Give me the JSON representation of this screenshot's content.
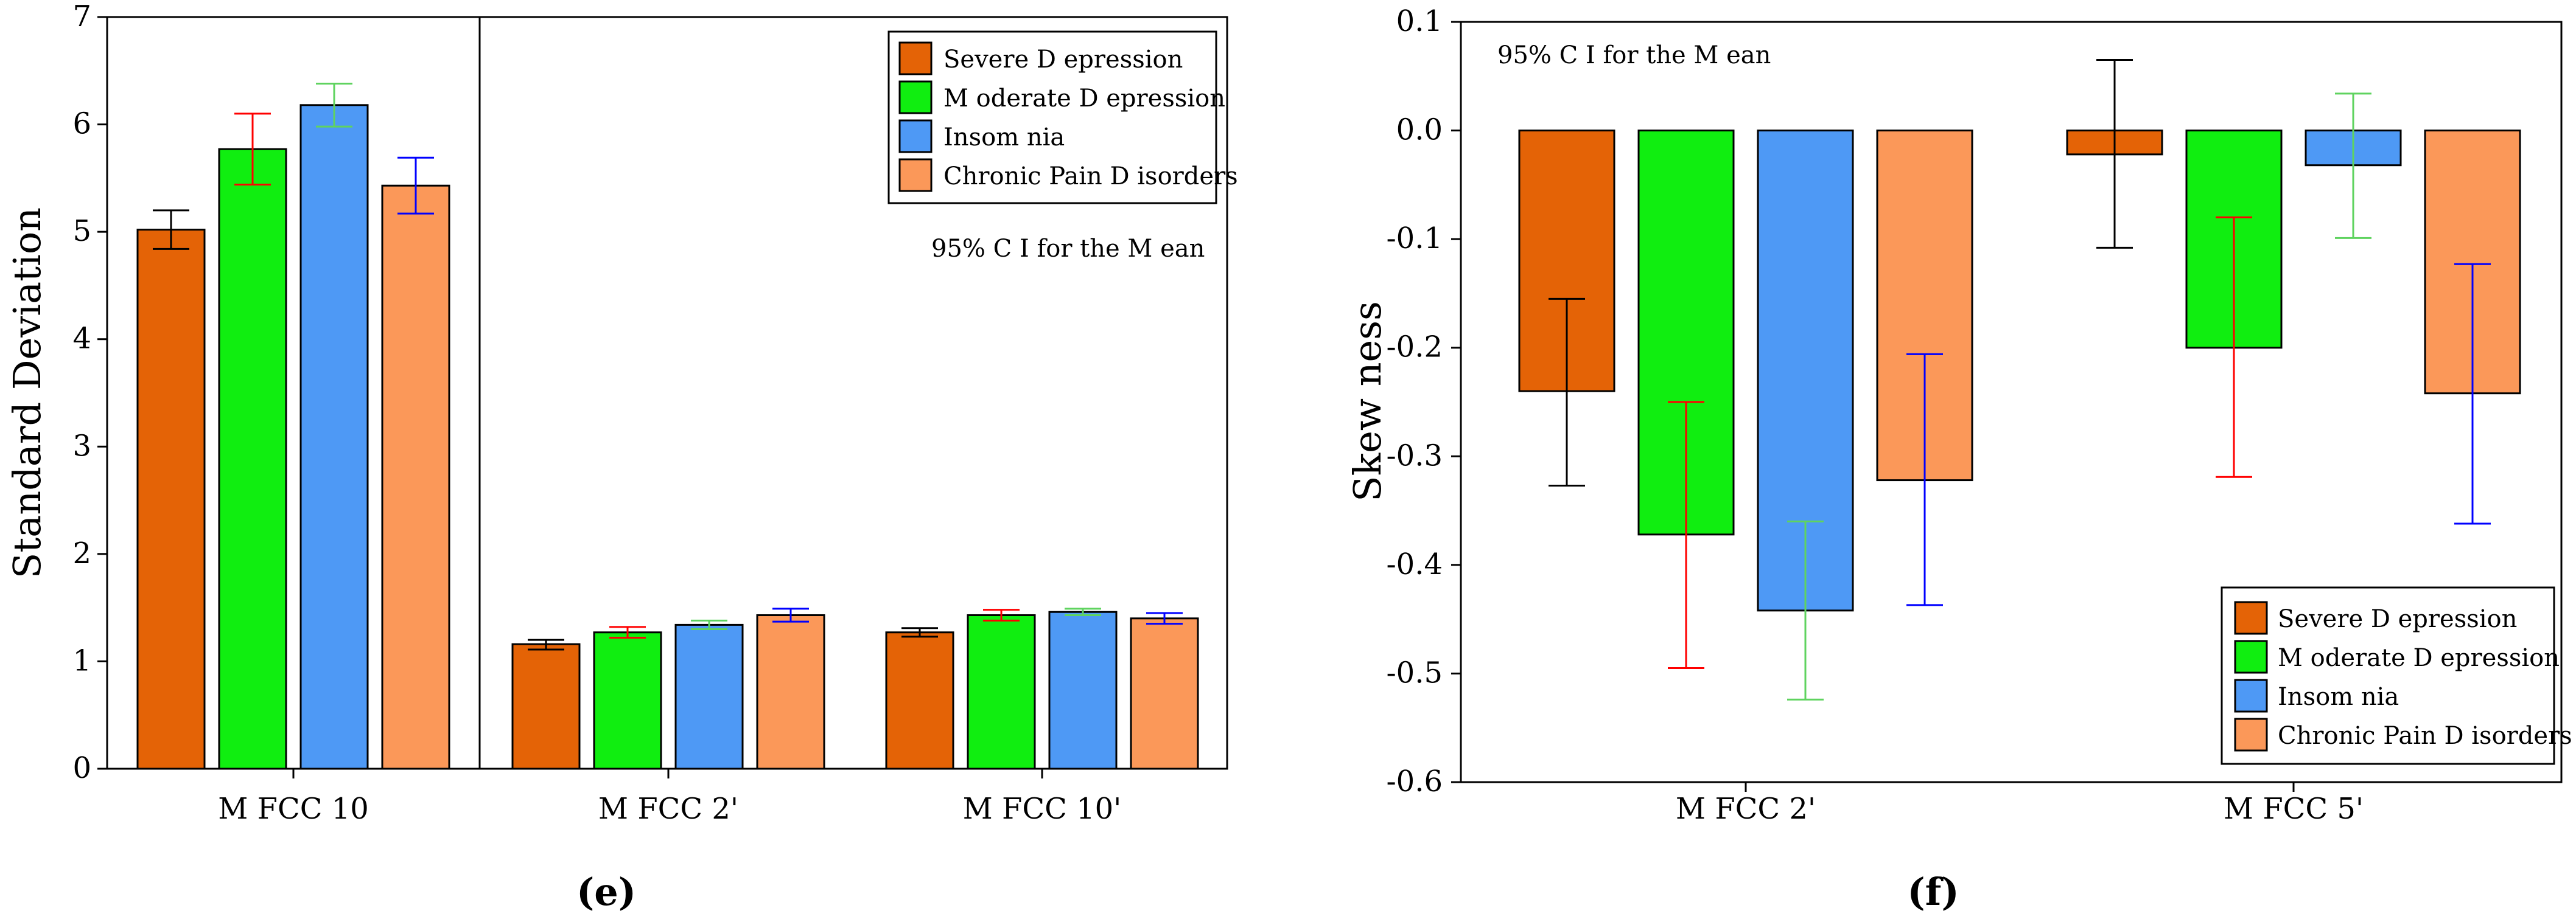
{
  "colors": {
    "severe": "#E46306",
    "moderate": "#10EE10",
    "insomnia": "#4E99F5",
    "chronic": "#FB9859",
    "axis": "#000000"
  },
  "chart_data": [
    {
      "panel_label": "(e)",
      "type": "bar",
      "title": "",
      "xlabel": "",
      "ylabel": "Standard Deviation",
      "ylim": [
        0,
        7
      ],
      "yticks": [
        "0",
        "1",
        "2",
        "3",
        "4",
        "5",
        "6",
        "7"
      ],
      "categories": [
        "M FCC 10",
        "M FCC 2'",
        "M FCC 10'"
      ],
      "annotation": "95%  C I for the M ean",
      "legend_position": "top-right",
      "series": [
        {
          "name": "Severe D epression",
          "color_key": "severe",
          "error_color": "#000000",
          "values": [
            5.02,
            1.16,
            1.27
          ],
          "ci_low": [
            4.84,
            1.11,
            1.23
          ],
          "ci_high": [
            5.2,
            1.2,
            1.31
          ]
        },
        {
          "name": "M oderate D epression",
          "color_key": "moderate",
          "error_color": "#FF0000",
          "values": [
            5.77,
            1.27,
            1.43
          ],
          "ci_low": [
            5.44,
            1.22,
            1.38
          ],
          "ci_high": [
            6.1,
            1.32,
            1.48
          ]
        },
        {
          "name": "Insom nia",
          "color_key": "insomnia",
          "error_color": "#5FD35F",
          "values": [
            6.18,
            1.34,
            1.46
          ],
          "ci_low": [
            5.98,
            1.3,
            1.43
          ],
          "ci_high": [
            6.38,
            1.38,
            1.49
          ]
        },
        {
          "name": "Chronic Pain D isorders",
          "color_key": "chronic",
          "error_color": "#0000FF",
          "values": [
            5.43,
            1.43,
            1.4
          ],
          "ci_low": [
            5.17,
            1.37,
            1.35
          ],
          "ci_high": [
            5.69,
            1.49,
            1.45
          ]
        }
      ]
    },
    {
      "panel_label": "(f)",
      "type": "bar",
      "title": "",
      "xlabel": "",
      "ylabel": "Skew ness",
      "ylim": [
        -0.6,
        0.1
      ],
      "yticks": [
        "0.1",
        "0.0",
        "-0.1",
        "-0.2",
        "-0.3",
        "-0.4",
        "-0.5",
        "-0.6"
      ],
      "categories": [
        "M FCC 2'",
        "M FCC 5'"
      ],
      "annotation": "95%  C I for the M ean",
      "legend_position": "bottom-right",
      "series": [
        {
          "name": "Severe D epression",
          "color_key": "severe",
          "error_color": "#000000",
          "values": [
            -0.24,
            -0.022
          ],
          "ci_low": [
            -0.327,
            -0.108
          ],
          "ci_high": [
            -0.155,
            0.065
          ]
        },
        {
          "name": "M oderate D epression",
          "color_key": "moderate",
          "error_color": "#FF0000",
          "values": [
            -0.372,
            -0.2
          ],
          "ci_low": [
            -0.495,
            -0.319
          ],
          "ci_high": [
            -0.25,
            -0.08
          ]
        },
        {
          "name": "Insom nia",
          "color_key": "insomnia",
          "error_color": "#5FD35F",
          "values": [
            -0.442,
            -0.032
          ],
          "ci_low": [
            -0.524,
            -0.099
          ],
          "ci_high": [
            -0.36,
            0.034
          ]
        },
        {
          "name": "Chronic Pain D isorders",
          "color_key": "chronic",
          "error_color": "#0000FF",
          "values": [
            -0.322,
            -0.242
          ],
          "ci_low": [
            -0.437,
            -0.362
          ],
          "ci_high": [
            -0.206,
            -0.123
          ]
        }
      ]
    }
  ]
}
